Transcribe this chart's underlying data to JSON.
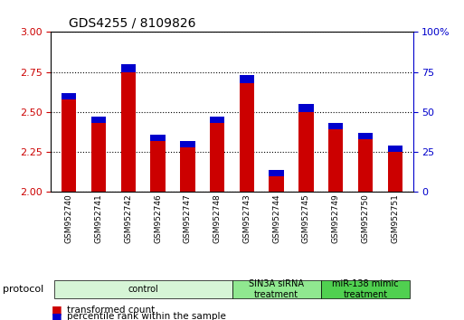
{
  "title": "GDS4255 / 8109826",
  "samples": [
    "GSM952740",
    "GSM952741",
    "GSM952742",
    "GSM952746",
    "GSM952747",
    "GSM952748",
    "GSM952743",
    "GSM952744",
    "GSM952745",
    "GSM952749",
    "GSM952750",
    "GSM952751"
  ],
  "red_values": [
    2.62,
    2.47,
    2.8,
    2.36,
    2.32,
    2.47,
    2.73,
    2.14,
    2.55,
    2.43,
    2.37,
    2.29
  ],
  "blue_values": [
    0.04,
    0.04,
    0.05,
    0.04,
    0.04,
    0.04,
    0.05,
    0.04,
    0.05,
    0.04,
    0.04,
    0.04
  ],
  "ymin": 2.0,
  "ymax": 3.0,
  "yticks": [
    2.0,
    2.25,
    2.5,
    2.75,
    3.0
  ],
  "y2min": 0,
  "y2max": 100,
  "y2ticks": [
    0,
    25,
    50,
    75,
    100
  ],
  "groups": [
    {
      "label": "control",
      "start": 0,
      "end": 6,
      "color": "#d6f5d6"
    },
    {
      "label": "SIN3A siRNA\ntreatment",
      "start": 6,
      "end": 9,
      "color": "#90e890"
    },
    {
      "label": "miR-138 mimic\ntreatment",
      "start": 9,
      "end": 12,
      "color": "#50d050"
    }
  ],
  "bar_width": 0.5,
  "red_color": "#cc0000",
  "blue_color": "#0000cc",
  "protocol_label": "protocol",
  "legend_red": "transformed count",
  "legend_blue": "percentile rank within the sample",
  "axis_color_left": "#cc0000",
  "axis_color_right": "#0000cc",
  "bar_bottom": 2.0
}
